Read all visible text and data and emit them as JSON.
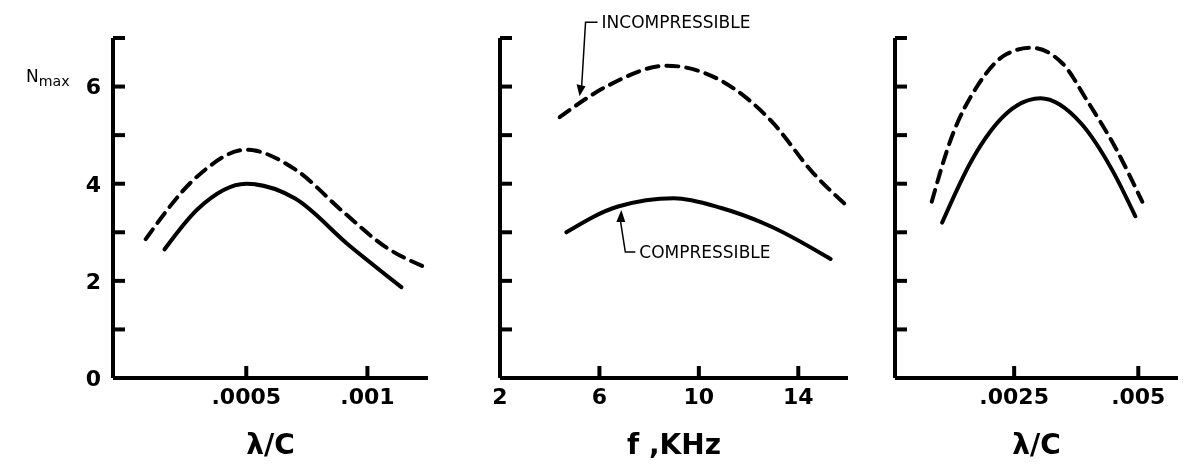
{
  "chart_data": [
    {
      "type": "line",
      "ylabel": "N$_{max}$",
      "xlabel": "λ/C",
      "xlim": [
        -5e-05,
        0.00125
      ],
      "xticks": [
        {
          "value": 0.0005,
          "label": ".0005"
        },
        {
          "value": 0.001,
          "label": ".001"
        }
      ],
      "ylim": [
        0,
        7
      ],
      "yticks": [
        0,
        {
          "value": 1,
          "label": null
        },
        2,
        {
          "value": 3,
          "label": null
        },
        4,
        {
          "value": 5,
          "label": null
        },
        6,
        {
          "value": 7,
          "label": null
        }
      ],
      "grid": false,
      "legend": false,
      "marker": "none",
      "series": [
        {
          "color": "#000000",
          "line_style": "dashed",
          "x": [
            8.5e-05,
            0.0003,
            0.0005,
            0.0007,
            0.0009,
            0.00108,
            0.00123
          ],
          "values": [
            2.86,
            4.16,
            4.7,
            4.3,
            3.42,
            2.68,
            2.3
          ]
        },
        {
          "color": "#000000",
          "line_style": "solid",
          "x": [
            0.000163,
            0.0003,
            0.0005,
            0.0007,
            0.00092,
            0.00114
          ],
          "values": [
            2.65,
            3.48,
            4.0,
            3.7,
            2.75,
            1.87
          ]
        }
      ]
    },
    {
      "type": "line",
      "xlabel": "f ,KHz",
      "xlim": [
        2,
        16
      ],
      "xticks": [
        2,
        6,
        10,
        14
      ],
      "ylim": [
        0,
        7
      ],
      "yticks": [
        {
          "value": 0,
          "label": null
        },
        {
          "value": 1,
          "label": null
        },
        {
          "value": 2,
          "label": null
        },
        {
          "value": 3,
          "label": null
        },
        {
          "value": 4,
          "label": null
        },
        {
          "value": 5,
          "label": null
        },
        {
          "value": 6,
          "label": null
        },
        {
          "value": 7,
          "label": null
        }
      ],
      "tick_labels": "x",
      "grid": false,
      "legend": false,
      "marker": "none",
      "annotations": [
        {
          "text": "INCOMPRESSIBLE",
          "x": 5.2,
          "y": 5.8
        },
        {
          "text": "COMPRESSIBLE",
          "x": 6.8,
          "y": 3.5
        }
      ],
      "series": [
        {
          "color": "#000000",
          "line_style": "dashed",
          "x": [
            4.4,
            6.35,
            8.7,
            10.9,
            12.9,
            14.6,
            15.9
          ],
          "values": [
            5.37,
            6.02,
            6.43,
            6.12,
            5.3,
            4.22,
            3.57
          ]
        },
        {
          "color": "#000000",
          "line_style": "solid",
          "x": [
            4.67,
            6.75,
            9.0,
            10.9,
            12.9,
            15.3
          ],
          "values": [
            3.0,
            3.53,
            3.7,
            3.5,
            3.12,
            2.45
          ]
        }
      ]
    },
    {
      "type": "line",
      "xlabel": "λ/C",
      "xlim": [
        0.0001,
        0.0058
      ],
      "xticks": [
        {
          "value": 0.0025,
          "label": ".0025"
        },
        {
          "value": 0.005,
          "label": ".005"
        }
      ],
      "ylim": [
        0,
        7
      ],
      "yticks": [
        {
          "value": 0,
          "label": null
        },
        {
          "value": 1,
          "label": null
        },
        {
          "value": 2,
          "label": null
        },
        {
          "value": 3,
          "label": null
        },
        {
          "value": 4,
          "label": null
        },
        {
          "value": 5,
          "label": null
        },
        {
          "value": 6,
          "label": null
        },
        {
          "value": 7,
          "label": null
        }
      ],
      "tick_labels": "x",
      "grid": false,
      "legend": false,
      "marker": "none",
      "series": [
        {
          "color": "#000000",
          "line_style": "dashed",
          "x": [
            0.00084,
            0.00122,
            0.00179,
            0.00235,
            0.00284,
            0.00348,
            0.00397,
            0.00453,
            0.00508
          ],
          "values": [
            3.63,
            4.9,
            6.06,
            6.67,
            6.8,
            6.47,
            5.71,
            4.76,
            3.63
          ]
        },
        {
          "color": "#000000",
          "line_style": "solid",
          "x": [
            0.00105,
            0.00165,
            0.00235,
            0.00303,
            0.00385,
            0.00447,
            0.00494
          ],
          "values": [
            3.2,
            4.49,
            5.45,
            5.76,
            5.24,
            4.29,
            3.33
          ]
        }
      ]
    }
  ]
}
